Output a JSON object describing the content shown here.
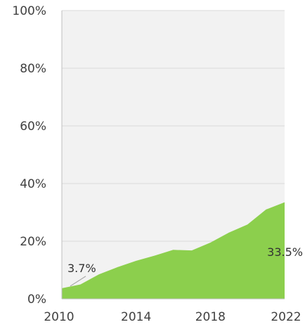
{
  "chart_data": {
    "type": "area",
    "title": "",
    "xlabel": "",
    "ylabel": "",
    "x": [
      2010,
      2011,
      2012,
      2013,
      2014,
      2015,
      2016,
      2017,
      2018,
      2019,
      2020,
      2021,
      2022
    ],
    "values": [
      3.7,
      5.0,
      8.5,
      11.0,
      13.2,
      15.0,
      17.0,
      16.8,
      19.5,
      23.0,
      25.8,
      31.0,
      33.5
    ],
    "xlim": [
      2010,
      2022
    ],
    "ylim": [
      0,
      100
    ],
    "x_ticks": [
      "2010",
      "2014",
      "2018",
      "2022"
    ],
    "y_ticks": [
      "0%",
      "20%",
      "40%",
      "60%",
      "80%",
      "100%"
    ],
    "grid": true,
    "legend": "none",
    "annotations": [
      {
        "x": 2010,
        "y": 3.7,
        "text": "3.7%"
      },
      {
        "x": 2022,
        "y": 33.5,
        "text": "33.5%"
      }
    ],
    "colors": {
      "area": "#8ccf4d",
      "plot_bg": "#f2f2f2",
      "grid": "#d9d9d9",
      "axis": "#bfbfbf"
    }
  }
}
